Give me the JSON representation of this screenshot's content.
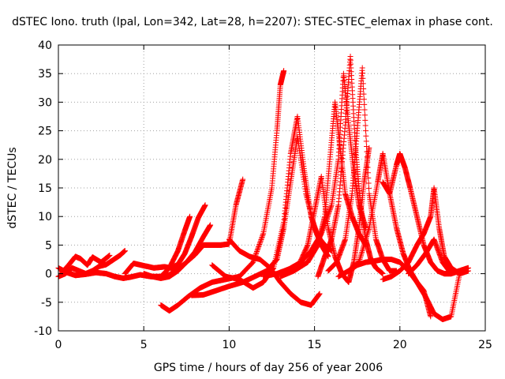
{
  "chart_data": {
    "type": "scatter",
    "title": "dSTEC Iono. truth (Ipal, Lon=342, Lat=28, h=2207): STEC-STEC_elemax in phase cont.",
    "xlabel": "GPS time / hours of day 256 of year 2006",
    "ylabel": "dSTEC  / TECUs",
    "xlim": [
      0,
      25
    ],
    "ylim": [
      -10,
      40
    ],
    "xticks": [
      0,
      5,
      10,
      15,
      20,
      25
    ],
    "yticks": [
      -10,
      -5,
      0,
      5,
      10,
      15,
      20,
      25,
      30,
      35,
      40
    ],
    "grid": true,
    "marker": "plus",
    "color": "#ff0000",
    "series": [
      {
        "x": [
          0,
          0.5,
          1.0,
          1.6,
          2.2,
          2.8,
          3.3,
          3.8,
          4.2,
          4.8,
          5.4,
          6.0,
          6.5,
          7.0,
          7.4,
          7.7
        ],
        "y": [
          1.0,
          0.2,
          -0.3,
          -0.1,
          0.2,
          0.0,
          -0.5,
          -0.8,
          -0.6,
          -0.2,
          -0.5,
          -0.5,
          1.0,
          4.0,
          7.5,
          10.0
        ]
      },
      {
        "x": [
          0,
          0.4,
          0.8,
          1.2,
          1.6,
          2.0,
          2.4,
          2.8,
          3.2,
          3.6,
          3.9
        ],
        "y": [
          -0.5,
          0.0,
          1.0,
          0.5,
          0.0,
          0.5,
          1.3,
          1.6,
          2.4,
          3.2,
          4.0
        ]
      },
      {
        "x": [
          0.2,
          0.6,
          1.0,
          1.3,
          1.7,
          2.0,
          2.5,
          3.0
        ],
        "y": [
          0.2,
          1.5,
          3.0,
          2.6,
          1.5,
          2.9,
          2.0,
          3.2
        ]
      },
      {
        "x": [
          3.9,
          4.4,
          5.0,
          5.6,
          6.2,
          6.6,
          7.0,
          7.4,
          7.8,
          8.2,
          8.6
        ],
        "y": [
          0.0,
          1.8,
          1.4,
          1.0,
          1.2,
          1.0,
          1.6,
          3.5,
          6.5,
          9.8,
          12.0
        ]
      },
      {
        "x": [
          5.0,
          5.5,
          6.0,
          6.5,
          7.0,
          7.5,
          8.0,
          8.5,
          8.9
        ],
        "y": [
          0.0,
          -0.5,
          -0.8,
          -0.5,
          0.5,
          2.0,
          3.8,
          6.5,
          8.5
        ]
      },
      {
        "x": [
          6.0,
          6.5,
          7.0,
          7.5,
          8.0,
          8.5,
          9.0,
          9.5,
          10.0,
          10.4,
          10.8
        ],
        "y": [
          -0.5,
          -0.2,
          0.8,
          2.0,
          3.3,
          5.0,
          5.0,
          5.0,
          5.2,
          12.0,
          16.5
        ]
      },
      {
        "x": [
          6.0,
          6.5,
          7.0,
          7.6,
          8.3,
          9.0,
          9.8,
          10.6,
          11.4,
          12.0,
          12.5,
          12.8,
          13.0,
          13.2
        ],
        "y": [
          -5.5,
          -6.5,
          -5.5,
          -4.0,
          -2.5,
          -1.5,
          -1.0,
          -0.5,
          2.0,
          7.0,
          15.0,
          25.0,
          33.0,
          35.5
        ]
      },
      {
        "x": [
          7.8,
          8.5,
          9.2,
          10.0,
          10.8,
          11.5,
          12.2,
          12.8,
          13.2,
          13.6,
          14.0,
          14.5,
          15.0,
          15.4,
          15.8
        ],
        "y": [
          -3.8,
          -3.7,
          -3.0,
          -2.2,
          -1.5,
          -0.5,
          0.5,
          2.5,
          8.0,
          16.0,
          24.0,
          14.0,
          8.0,
          5.0,
          3.0
        ]
      },
      {
        "x": [
          9.0,
          9.8,
          10.6,
          11.4,
          12.0,
          12.6,
          13.2,
          13.6,
          14.0,
          14.4,
          14.8,
          15.2,
          15.6,
          16.0
        ],
        "y": [
          1.5,
          -0.5,
          -1.0,
          -2.5,
          -1.5,
          1.0,
          9.0,
          21.0,
          27.5,
          18.0,
          10.0,
          6.5,
          5.0,
          4.0
        ]
      },
      {
        "x": [
          10.0,
          10.6,
          11.2,
          11.8,
          12.4,
          13.0,
          13.6,
          14.2,
          14.8,
          15.3
        ],
        "y": [
          6.0,
          4.0,
          3.0,
          2.5,
          1.0,
          -1.5,
          -3.5,
          -5.0,
          -5.5,
          -3.5
        ]
      },
      {
        "x": [
          12.0,
          12.8,
          13.5,
          14.2,
          14.8,
          15.4,
          16.0,
          16.4,
          16.7,
          17.0,
          17.3,
          17.6,
          18.0
        ],
        "y": [
          -0.5,
          0.0,
          0.8,
          2.0,
          4.0,
          7.0,
          12.0,
          20.0,
          35.0,
          26.0,
          18.0,
          12.0,
          8.0
        ]
      },
      {
        "x": [
          13.0,
          13.8,
          14.6,
          15.2,
          15.6,
          15.9,
          16.2,
          16.5,
          16.8,
          17.2,
          17.6,
          18.0
        ],
        "y": [
          -0.5,
          0.5,
          2.0,
          5.0,
          10.0,
          20.0,
          30.0,
          22.0,
          14.0,
          10.0,
          7.0,
          5.0
        ]
      },
      {
        "x": [
          14.0,
          14.6,
          15.0,
          15.4,
          15.8,
          16.2,
          16.6,
          17.0,
          17.3,
          17.6,
          17.9,
          18.2
        ],
        "y": [
          1.0,
          5.0,
          11.0,
          17.0,
          8.0,
          3.0,
          0.0,
          -1.5,
          2.0,
          8.0,
          16.0,
          22.0
        ]
      },
      {
        "x": [
          15.2,
          15.6,
          16.0,
          16.4,
          16.8,
          17.1,
          17.4,
          17.7,
          18.0,
          18.3,
          18.6,
          19.0
        ],
        "y": [
          -0.5,
          3.0,
          6.0,
          12.0,
          26.0,
          38.0,
          22.0,
          12.0,
          6.0,
          2.5,
          1.0,
          0.0
        ]
      },
      {
        "x": [
          15.8,
          16.3,
          16.8,
          17.2,
          17.5,
          17.8,
          18.2,
          18.6,
          19.0,
          19.4,
          19.8
        ],
        "y": [
          0.5,
          2.0,
          6.0,
          14.0,
          25.0,
          36.0,
          14.0,
          6.0,
          2.5,
          0.5,
          0.5
        ]
      },
      {
        "x": [
          16.4,
          17.0,
          17.5,
          18.0,
          18.5,
          19.0,
          19.5,
          20.0,
          20.5,
          21.0,
          21.5,
          22.0,
          22.5,
          23.0,
          23.5,
          24.0
        ],
        "y": [
          -0.5,
          0.5,
          1.5,
          2.0,
          2.2,
          2.5,
          2.5,
          2.0,
          0.5,
          -1.5,
          -4.0,
          -7.0,
          -8.0,
          -7.5,
          0.0,
          0.5
        ]
      },
      {
        "x": [
          17.0,
          17.6,
          18.2,
          18.7,
          19.0,
          19.4,
          19.8,
          20.2,
          20.6,
          21.0,
          21.4,
          21.8
        ],
        "y": [
          0.5,
          2.0,
          8.0,
          16.0,
          21.0,
          14.0,
          8.0,
          3.5,
          0.5,
          -1.5,
          -3.0,
          -7.5
        ]
      },
      {
        "x": [
          19.0,
          19.4,
          19.8,
          20.0,
          20.3,
          20.6,
          21.0,
          21.4,
          21.8,
          22.2,
          22.6,
          23.0,
          23.5,
          24.0
        ],
        "y": [
          16.0,
          14.0,
          19.0,
          21.0,
          18.5,
          15.0,
          10.0,
          5.0,
          2.0,
          0.5,
          0.0,
          0.0,
          0.5,
          1.0
        ]
      },
      {
        "x": [
          19.0,
          19.5,
          20.0,
          20.5,
          21.0,
          21.4,
          21.8,
          22.0,
          22.3,
          22.6,
          23.0,
          23.5,
          24.0
        ],
        "y": [
          -1.0,
          -0.5,
          0.5,
          2.0,
          5.0,
          7.0,
          10.0,
          15.0,
          8.0,
          3.0,
          1.0,
          0.0,
          0.5
        ]
      },
      {
        "x": [
          20.5,
          21.0,
          21.5,
          22.0,
          22.5,
          23.0,
          23.5,
          24.0
        ],
        "y": [
          0.0,
          1.5,
          3.5,
          6.0,
          2.0,
          0.0,
          0.5,
          1.0
        ]
      }
    ]
  }
}
